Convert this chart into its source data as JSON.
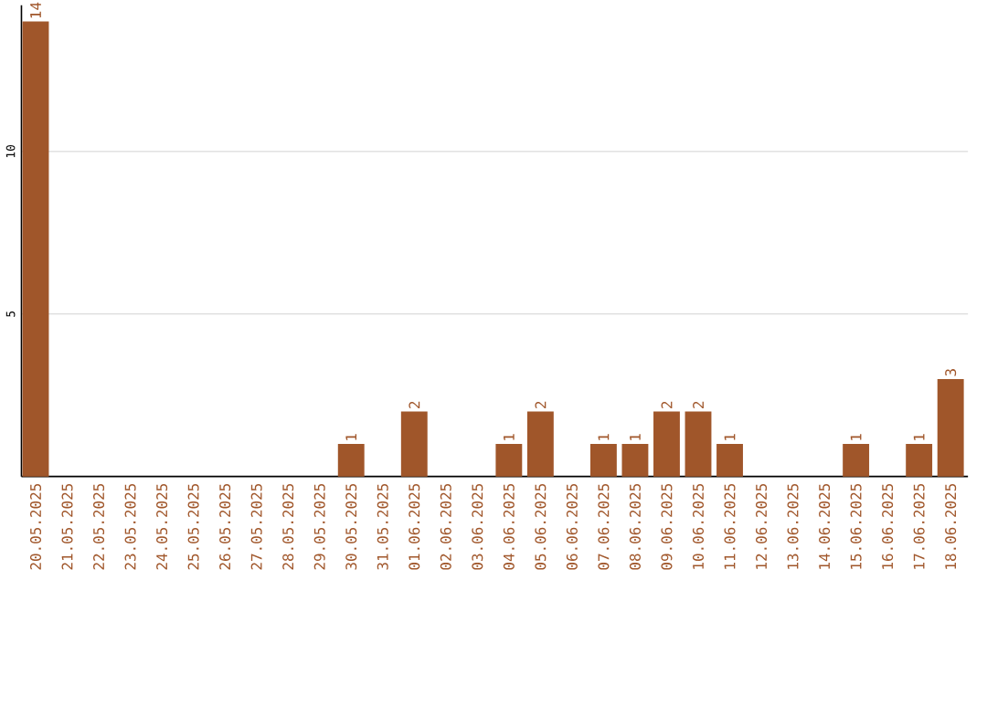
{
  "chart_data": {
    "type": "bar",
    "categories": [
      "20.05.2025",
      "21.05.2025",
      "22.05.2025",
      "23.05.2025",
      "24.05.2025",
      "25.05.2025",
      "26.05.2025",
      "27.05.2025",
      "28.05.2025",
      "29.05.2025",
      "30.05.2025",
      "31.05.2025",
      "01.06.2025",
      "02.06.2025",
      "03.06.2025",
      "04.06.2025",
      "05.06.2025",
      "06.06.2025",
      "07.06.2025",
      "08.06.2025",
      "09.06.2025",
      "10.06.2025",
      "11.06.2025",
      "12.06.2025",
      "13.06.2025",
      "14.06.2025",
      "15.06.2025",
      "16.06.2025",
      "17.06.2025",
      "18.06.2025"
    ],
    "values": [
      14,
      0,
      0,
      0,
      0,
      0,
      0,
      0,
      0,
      0,
      1,
      0,
      2,
      0,
      0,
      1,
      2,
      0,
      1,
      1,
      2,
      2,
      1,
      0,
      0,
      0,
      1,
      0,
      1,
      3
    ],
    "value_labels": [
      "14",
      null,
      null,
      null,
      null,
      null,
      null,
      null,
      null,
      null,
      "1",
      null,
      "2",
      null,
      null,
      "1",
      "2",
      null,
      "1",
      "1",
      "2",
      "2",
      "1",
      null,
      null,
      null,
      "1",
      null,
      "1",
      "3"
    ],
    "color": "#a0562a",
    "ylim": [
      0,
      14.5
    ],
    "yticks": [
      5,
      10
    ],
    "grid": "y"
  }
}
